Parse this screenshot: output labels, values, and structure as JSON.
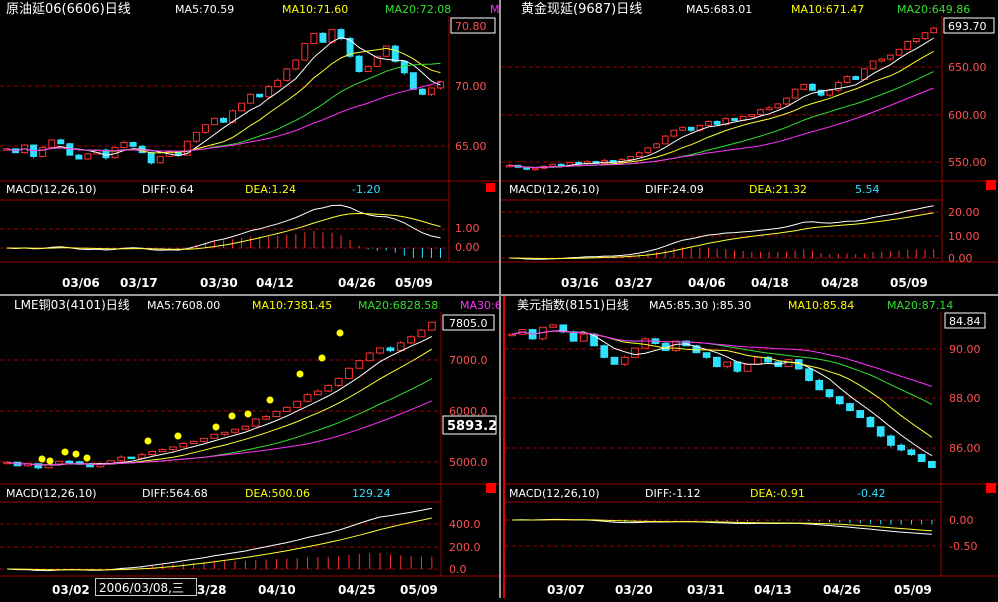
{
  "colors": {
    "up": "#ff3030",
    "down": "#30e0ff",
    "ma5": "#ffffff",
    "ma10": "#ffff30",
    "ma20": "#30e030",
    "ma30": "#ff30ff",
    "grid": "#a00000",
    "text_yellow": "#ffff00",
    "text_white": "#ffffff",
    "text_green": "#30e030",
    "text_cyan": "#30e0ff",
    "marker": "#ffff00"
  },
  "tooltip": {
    "text": "2006/03/08,三"
  },
  "panels": [
    {
      "id": "crude",
      "title": "原油延06(6606)日线",
      "ma5": "MA5:70.59",
      "ma10": "MA10:71.60",
      "ma20": "MA20:72.08",
      "ma30": "M",
      "price_labels": [
        "70.00",
        "65.00"
      ],
      "last_price": "70.80",
      "macd_label": "MACD(12,26,10)",
      "diff": "DIFF:0.64",
      "dea": "DEA:1.24",
      "macd_val": "-1.20",
      "macd_labels": [
        "1.00",
        "0.00"
      ],
      "dates": [
        "03/06",
        "03/17",
        "03/30",
        "04/12",
        "04/26",
        "05/09"
      ]
    },
    {
      "id": "gold",
      "title": "黄金现延(9687)日线",
      "ma5": "MA5:683.01",
      "ma10": "MA10:671.47",
      "ma20": "MA20:649.86",
      "ma30": "",
      "price_labels": [
        "650.00",
        "600.00",
        "550.00"
      ],
      "last_price": "693.70",
      "macd_label": "MACD(12,26,10)",
      "diff": "DIFF:24.09",
      "dea": "DEA:21.32",
      "macd_val": "5.54",
      "macd_labels": [
        "20.00",
        "10.00",
        "0.00"
      ],
      "dates": [
        "03/16",
        "03/27",
        "04/06",
        "04/18",
        "04/28",
        "05/09"
      ]
    },
    {
      "id": "copper",
      "title": "LME铜03(4101)日线",
      "ma5": "MA5:7608.00",
      "ma10": "MA10:7381.45",
      "ma20": "MA20:6828.58",
      "ma30": "MA30:6",
      "price_labels": [
        "7000.0",
        "6000.0",
        "5000.0"
      ],
      "last_price": "7805.0",
      "cursor_price": "5893.2",
      "macd_label": "MACD(12,26,10)",
      "diff": "DIFF:564.68",
      "dea": "DEA:500.06",
      "macd_val": "129.24",
      "macd_labels": [
        "400.0",
        "200.0",
        "0.0"
      ],
      "dates": [
        "03/02",
        "3/28",
        "04/10",
        "04/25",
        "05/09"
      ]
    },
    {
      "id": "usd",
      "title": "美元指数(8151)日线",
      "ma5": "MA5:85.30 ):85.30",
      "ma10": "MA10:85.84",
      "ma20": "MA20:87.14",
      "ma30": "",
      "price_labels": [
        "90.00",
        "88.00",
        "86.00"
      ],
      "last_price": "84.84",
      "macd_label": "MACD(12,26,10)",
      "diff": "DIFF:-1.12",
      "dea": "DEA:-0.91",
      "macd_val": "-0.42",
      "macd_labels": [
        "0.00",
        "-0.50"
      ],
      "dates": [
        "03/07",
        "03/20",
        "03/31",
        "04/13",
        "04/26",
        "05/09"
      ]
    }
  ],
  "series": {
    "crude": [
      65.5,
      65.2,
      65.8,
      64.9,
      65.6,
      66.2,
      65.9,
      65.0,
      64.7,
      65.1,
      65.4,
      64.8,
      65.6,
      66.0,
      65.7,
      65.2,
      64.4,
      64.9,
      65.3,
      65.0,
      66.1,
      66.8,
      67.4,
      67.9,
      67.6,
      68.5,
      69.1,
      69.8,
      69.6,
      70.4,
      70.9,
      71.8,
      72.5,
      73.8,
      74.6,
      73.9,
      74.9,
      74.2,
      72.8,
      71.6,
      72.0,
      72.8,
      73.6,
      72.4,
      71.5,
      70.2,
      69.8,
      70.3,
      70.8
    ],
    "gold": [
      553,
      551,
      549,
      550,
      552,
      554,
      553,
      556,
      555,
      557,
      555,
      558,
      556,
      559,
      562,
      566,
      571,
      575,
      583,
      589,
      592,
      589,
      594,
      598,
      595,
      601,
      599,
      603,
      605,
      610,
      612,
      616,
      622,
      631,
      636,
      630,
      625,
      630,
      638,
      644,
      641,
      652,
      660,
      662,
      666,
      672,
      680,
      683,
      689,
      693.7
    ],
    "copper": [
      5050,
      4980,
      5020,
      4940,
      5000,
      5070,
      5060,
      5010,
      4960,
      5020,
      5080,
      5150,
      5130,
      5200,
      5260,
      5300,
      5350,
      5420,
      5460,
      5520,
      5600,
      5640,
      5700,
      5760,
      5900,
      5950,
      6050,
      6130,
      6250,
      6380,
      6450,
      6560,
      6700,
      6900,
      7050,
      7200,
      7300,
      7250,
      7400,
      7520,
      7650,
      7805
    ],
    "usd": [
      90.6,
      90.8,
      90.4,
      90.9,
      91.0,
      90.7,
      90.3,
      90.6,
      90.1,
      89.6,
      89.3,
      89.6,
      90.0,
      90.4,
      90.2,
      89.9,
      90.3,
      90.1,
      89.8,
      89.6,
      89.2,
      89.4,
      89.0,
      89.3,
      89.6,
      89.4,
      89.2,
      89.5,
      89.1,
      88.6,
      88.2,
      87.9,
      87.6,
      87.3,
      87.0,
      86.6,
      86.2,
      85.8,
      85.6,
      85.4,
      85.1,
      84.84
    ]
  }
}
